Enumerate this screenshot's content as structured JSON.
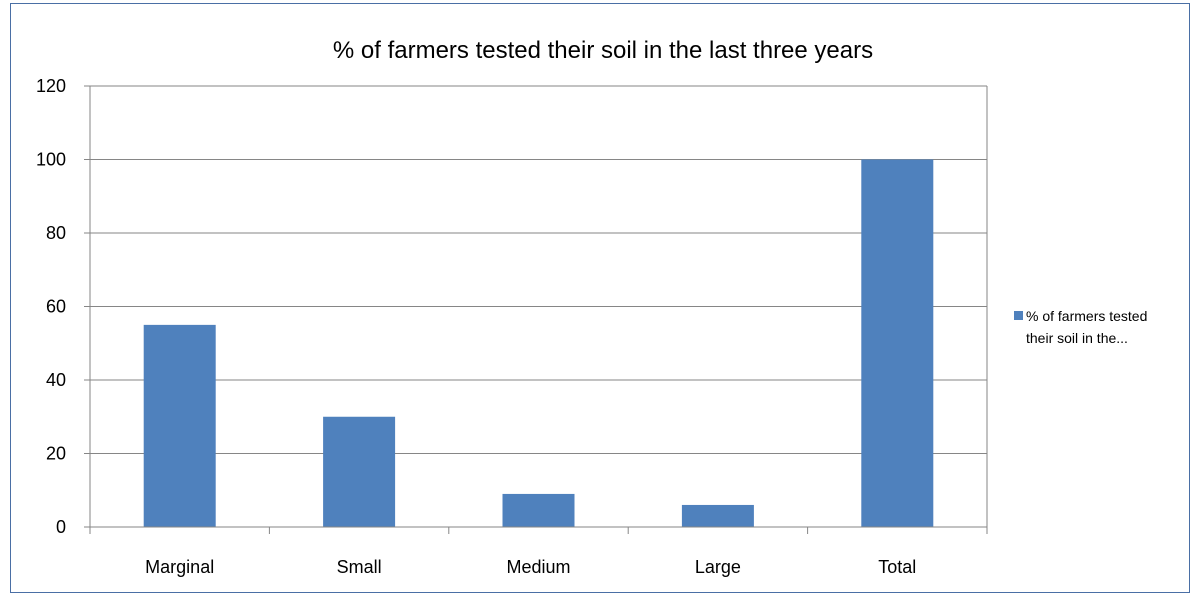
{
  "chart_data": {
    "type": "bar",
    "title": "% of farmers tested their soil in the last three years",
    "xlabel": "",
    "ylabel": "",
    "categories": [
      "Marginal",
      "Small",
      "Medium",
      "Large",
      "Total"
    ],
    "series": [
      {
        "name": "% of farmers tested their soil in the...",
        "values": [
          55,
          30,
          9,
          6,
          100
        ]
      }
    ],
    "ylim": [
      0,
      120
    ],
    "yticks": [
      0,
      20,
      40,
      60,
      80,
      100,
      120
    ],
    "grid": true,
    "legend_position": "right",
    "colors": {
      "bar": "#4f81bd",
      "grid": "#868686",
      "axis": "#868686",
      "frame": "#4a6fa5"
    }
  },
  "legend": {
    "line1": "% of farmers tested",
    "line2": "their soil in the..."
  }
}
